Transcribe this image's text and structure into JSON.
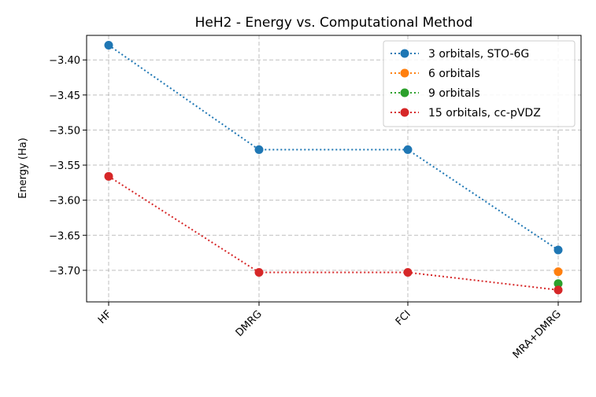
{
  "chart_data": {
    "type": "line",
    "title": "HeH2 - Energy vs. Computational Method",
    "xlabel": "",
    "ylabel": "Energy (Ha)",
    "categories": [
      "HF",
      "DMRG",
      "FCI",
      "MRA+DMRG"
    ],
    "ylim": [
      -3.745,
      -3.365
    ],
    "yticks": [
      -3.4,
      -3.45,
      -3.5,
      -3.55,
      -3.6,
      -3.65,
      -3.7
    ],
    "ytick_labels": [
      "−3.40",
      "−3.45",
      "−3.50",
      "−3.55",
      "−3.60",
      "−3.65",
      "−3.70"
    ],
    "grid": true,
    "legend_position": "top-right",
    "series": [
      {
        "name": "3 orbitals, STO-6G",
        "color": "#1f77b4",
        "values": [
          -3.379,
          -3.528,
          -3.528,
          -3.671
        ]
      },
      {
        "name": "6 orbitals",
        "color": "#ff7f0e",
        "values": [
          null,
          null,
          null,
          -3.702
        ]
      },
      {
        "name": "9 orbitals",
        "color": "#2ca02c",
        "values": [
          null,
          null,
          null,
          -3.719
        ]
      },
      {
        "name": "15 orbitals, cc-pVDZ",
        "color": "#d62728",
        "values": [
          -3.566,
          -3.703,
          -3.703,
          -3.728
        ]
      }
    ]
  }
}
